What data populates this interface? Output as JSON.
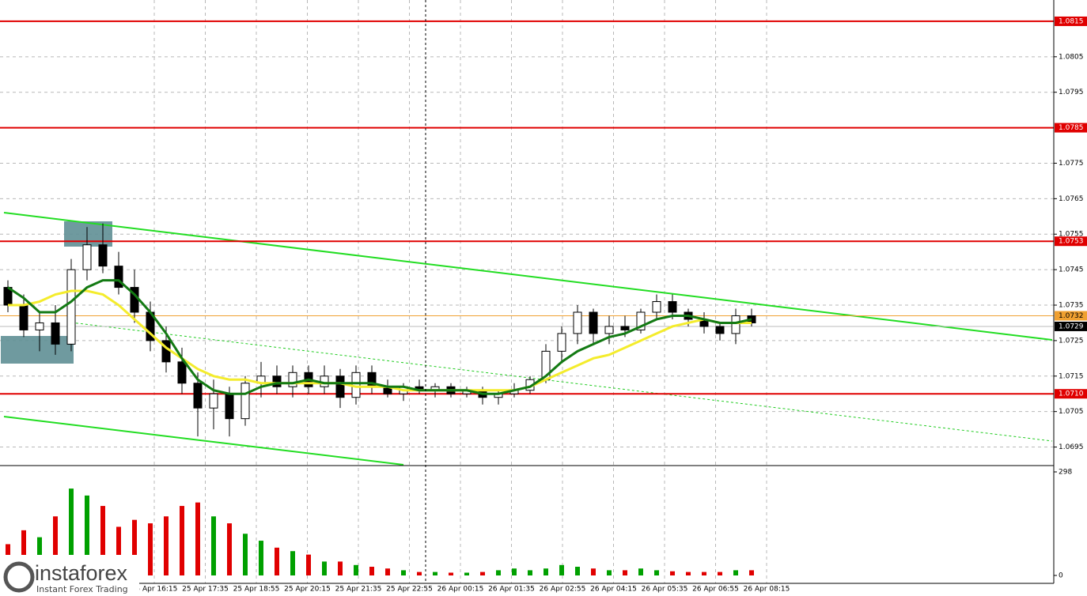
{
  "chart_data": {
    "type": "candlestick",
    "ylim": [
      1.069,
      1.0821
    ],
    "yticks": [
      1.0805,
      1.0795,
      1.0775,
      1.0765,
      1.0755,
      1.0745,
      1.0735,
      1.0725,
      1.0715,
      1.0705,
      1.0695
    ],
    "levels": [
      1.0815,
      1.0785,
      1.0753,
      {
        "value": 1.071,
        "label": "1.0710"
      }
    ],
    "level_color": "#e00000",
    "ask": 1.0732,
    "ask_color": "#f0a030",
    "bid": 1.0729,
    "open": [
      1.074,
      1.0735,
      1.0728,
      1.073,
      1.0724,
      1.0745,
      1.0752,
      1.0746,
      1.074,
      1.0733,
      1.0725,
      1.0719,
      1.0713,
      1.0706,
      1.071,
      1.0703,
      1.0713,
      1.0715,
      1.0712,
      1.0716,
      1.0712,
      1.0715,
      1.0709,
      1.0716,
      1.0712,
      1.071,
      1.0712,
      1.0711,
      1.0712,
      1.071,
      1.0711,
      1.0709,
      1.071,
      1.0711,
      1.0714,
      1.0722,
      1.0727,
      1.0733,
      1.0727,
      1.0729,
      1.0728,
      1.0733,
      1.0736,
      1.0733,
      1.0731,
      1.0729,
      1.0727,
      1.0732
    ],
    "high": [
      1.0742,
      1.0738,
      1.0733,
      1.0735,
      1.0748,
      1.0757,
      1.0758,
      1.075,
      1.0745,
      1.0736,
      1.0729,
      1.0723,
      1.0716,
      1.0714,
      1.0712,
      1.0715,
      1.0719,
      1.0718,
      1.0718,
      1.0718,
      1.0718,
      1.0717,
      1.0718,
      1.0718,
      1.0714,
      1.0713,
      1.0714,
      1.0713,
      1.0713,
      1.0712,
      1.0712,
      1.0711,
      1.0713,
      1.0715,
      1.0724,
      1.0729,
      1.0735,
      1.0734,
      1.0732,
      1.0732,
      1.0734,
      1.0738,
      1.0738,
      1.0734,
      1.0733,
      1.073,
      1.0734,
      1.0734
    ],
    "low": [
      1.0733,
      1.0726,
      1.0722,
      1.0721,
      1.0722,
      1.0742,
      1.0744,
      1.0738,
      1.073,
      1.0722,
      1.0716,
      1.071,
      1.0698,
      1.07,
      1.0698,
      1.0701,
      1.0709,
      1.071,
      1.0709,
      1.071,
      1.071,
      1.0706,
      1.0707,
      1.071,
      1.0709,
      1.0708,
      1.071,
      1.0709,
      1.0709,
      1.0709,
      1.0707,
      1.0707,
      1.0709,
      1.071,
      1.0713,
      1.0719,
      1.0724,
      1.0724,
      1.0724,
      1.0726,
      1.0727,
      1.0731,
      1.0731,
      1.0729,
      1.0727,
      1.0725,
      1.0724,
      1.0729
    ],
    "close": [
      1.0735,
      1.0728,
      1.073,
      1.0724,
      1.0745,
      1.0752,
      1.0746,
      1.074,
      1.0733,
      1.0725,
      1.0719,
      1.0713,
      1.0706,
      1.071,
      1.0703,
      1.0713,
      1.0715,
      1.0712,
      1.0716,
      1.0712,
      1.0715,
      1.0709,
      1.0716,
      1.0712,
      1.071,
      1.0712,
      1.0711,
      1.0712,
      1.071,
      1.0711,
      1.0709,
      1.071,
      1.0711,
      1.0714,
      1.0722,
      1.0727,
      1.0733,
      1.0727,
      1.0729,
      1.0728,
      1.0733,
      1.0736,
      1.0733,
      1.0731,
      1.0729,
      1.0727,
      1.0732,
      1.073
    ],
    "up_color": "#ffffff",
    "down_color": "#000000",
    "ma_slow": {
      "color": "#f4ec2c",
      "values": [
        1.0735,
        1.0735,
        1.0736,
        1.0738,
        1.0739,
        1.0739,
        1.0738,
        1.0735,
        1.0731,
        1.0727,
        1.0723,
        1.072,
        1.0717,
        1.0715,
        1.0714,
        1.0714,
        1.0713,
        1.0713,
        1.0713,
        1.0713,
        1.0713,
        1.0713,
        1.0712,
        1.0712,
        1.0712,
        1.0711,
        1.0711,
        1.0711,
        1.0711,
        1.0711,
        1.0711,
        1.0711,
        1.0711,
        1.0712,
        1.0714,
        1.0716,
        1.0718,
        1.072,
        1.0721,
        1.0723,
        1.0725,
        1.0727,
        1.0729,
        1.073,
        1.0731,
        1.073,
        1.073,
        1.073
      ]
    },
    "ma_fast": {
      "color": "#137a13",
      "values": [
        1.074,
        1.0737,
        1.0733,
        1.0733,
        1.0736,
        1.074,
        1.0742,
        1.0742,
        1.0738,
        1.0733,
        1.0727,
        1.072,
        1.0714,
        1.0711,
        1.071,
        1.071,
        1.0712,
        1.0713,
        1.0713,
        1.0714,
        1.0713,
        1.0713,
        1.0713,
        1.0713,
        1.0712,
        1.0712,
        1.0711,
        1.0711,
        1.0711,
        1.0711,
        1.071,
        1.071,
        1.0711,
        1.0712,
        1.0715,
        1.0719,
        1.0722,
        1.0724,
        1.0726,
        1.0727,
        1.0729,
        1.0731,
        1.0732,
        1.0732,
        1.0731,
        1.073,
        1.073,
        1.0731
      ]
    },
    "volume": {
      "up_color": "#00a000",
      "down_color": "#e00000",
      "ylim": [
        0,
        298
      ],
      "yticks": [
        298,
        0
      ],
      "values": [
        90,
        130,
        110,
        170,
        250,
        230,
        200,
        140,
        160,
        150,
        170,
        200,
        210,
        170,
        150,
        120,
        100,
        80,
        70,
        60,
        40,
        40,
        30,
        25,
        20,
        15,
        10,
        10,
        8,
        8,
        10,
        15,
        20,
        15,
        20,
        30,
        25,
        20,
        15,
        15,
        20,
        15,
        12,
        10,
        10,
        10,
        15,
        15
      ]
    },
    "xticks": [
      "25 Apr 16:15",
      "25 Apr 17:35",
      "25 Apr 18:55",
      "25 Apr 20:15",
      "25 Apr 21:35",
      "25 Apr 22:55",
      "26 Apr 00:15",
      "26 Apr 01:35",
      "26 Apr 02:55",
      "26 Apr 04:15",
      "26 Apr 05:35",
      "26 Apr 06:55",
      "26 Apr 08:15"
    ]
  },
  "logo": {
    "name": "instaforex",
    "tagline": "Instant Forex Trading"
  }
}
